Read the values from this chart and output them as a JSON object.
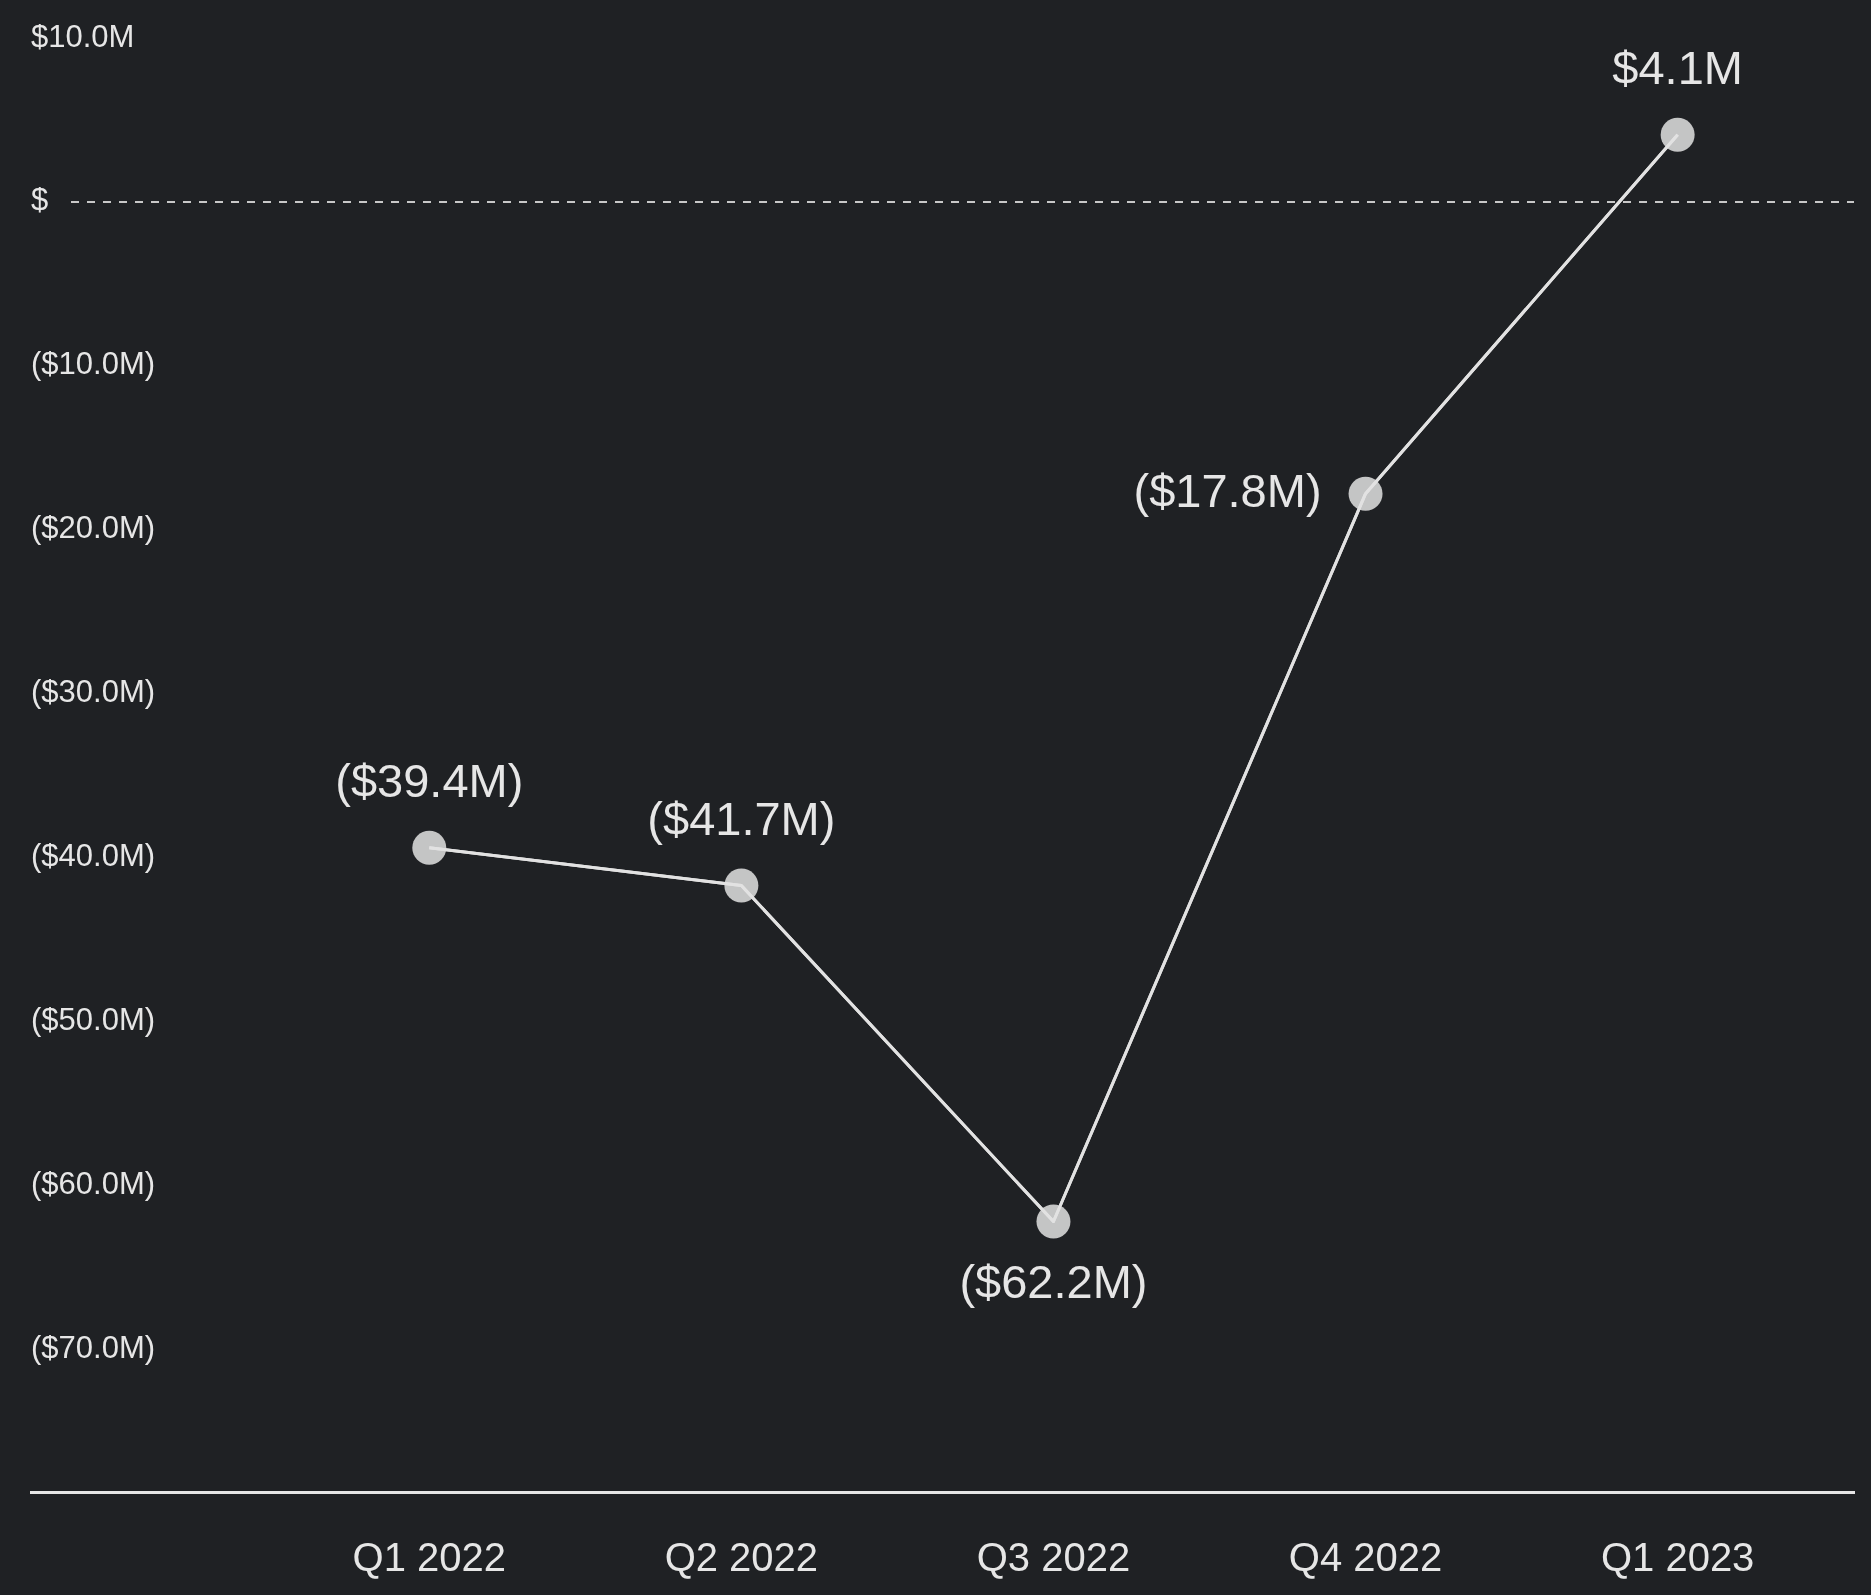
{
  "chart_data": {
    "type": "line",
    "categories": [
      "Q1 2022",
      "Q2 2022",
      "Q3 2022",
      "Q4 2022",
      "Q1 2023"
    ],
    "series": [
      {
        "color": "#e2e2e2",
        "values": [
          -39.4,
          -41.7,
          -62.2,
          -17.8,
          4.1
        ],
        "value_labels": [
          "($39.4M)",
          "($41.7M)",
          "($62.2M)",
          "($17.8M)",
          "$4.1M"
        ]
      }
    ],
    "ylim": [
      -78.7,
      10
    ],
    "yticks": [
      {
        "value": 10,
        "label": "$10.0M"
      },
      {
        "value": 0,
        "label": "$"
      },
      {
        "value": -10,
        "label": "($10.0M)"
      },
      {
        "value": -20,
        "label": "($20.0M)"
      },
      {
        "value": -30,
        "label": "($30.0M)"
      },
      {
        "value": -40,
        "label": "($40.0M)"
      },
      {
        "value": -50,
        "label": "($50.0M)"
      },
      {
        "value": -60,
        "label": "($60.0M)"
      },
      {
        "value": -70,
        "label": "($70.0M)"
      }
    ],
    "ref_lines": [
      {
        "axis": "y",
        "value": 0,
        "color": "#c8c8c8",
        "line_style": "dashed"
      }
    ],
    "grid": false,
    "legend": false,
    "marker": "circle",
    "line_style": "solid"
  }
}
